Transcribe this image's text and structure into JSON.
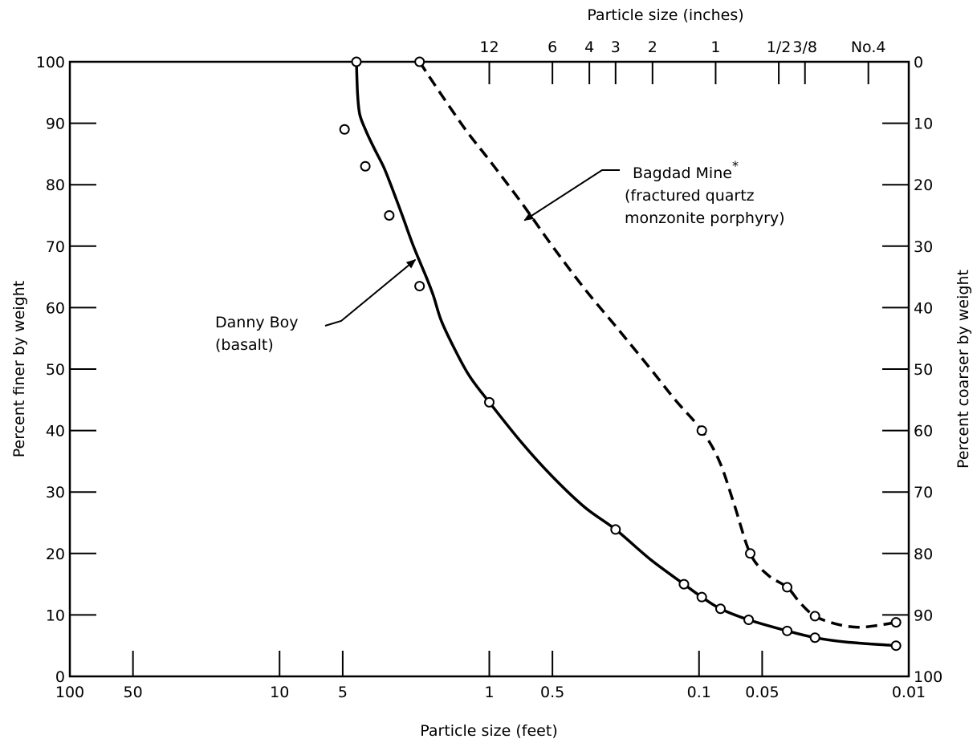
{
  "chart_data": {
    "type": "line",
    "title": "",
    "xlabel": "Particle size (feet)",
    "ylabel": "Percent finer by weight",
    "y2label": "Percent coarser by weight",
    "x2label": "Particle size (inches)",
    "x_scale": "log",
    "x_reversed": true,
    "xlim": [
      100,
      0.01
    ],
    "ylim": [
      0,
      100
    ],
    "grid": false,
    "legend": "none",
    "x_ticks": [
      {
        "value": 100,
        "label": "100"
      },
      {
        "value": 50,
        "label": "50"
      },
      {
        "value": 10,
        "label": "10"
      },
      {
        "value": 5,
        "label": "5"
      },
      {
        "value": 1,
        "label": "1"
      },
      {
        "value": 0.5,
        "label": "0.5"
      },
      {
        "value": 0.1,
        "label": "0.1"
      },
      {
        "value": 0.05,
        "label": "0.05"
      },
      {
        "value": 0.01,
        "label": "0.01"
      }
    ],
    "x2_ticks": [
      {
        "value": 12,
        "label": "12"
      },
      {
        "value": 6,
        "label": "6"
      },
      {
        "value": 4,
        "label": "4"
      },
      {
        "value": 3,
        "label": "3"
      },
      {
        "value": 2,
        "label": "2"
      },
      {
        "value": 1,
        "label": "1"
      },
      {
        "value": 0.5,
        "label": "1/2"
      },
      {
        "value": 0.375,
        "label": "3/8"
      },
      {
        "value": 0.187,
        "label": "No.4"
      }
    ],
    "y_ticks": [
      "0",
      "10",
      "20",
      "30",
      "40",
      "50",
      "60",
      "70",
      "80",
      "90",
      "100"
    ],
    "y2_ticks": [
      "100",
      "90",
      "80",
      "70",
      "60",
      "50",
      "40",
      "30",
      "20",
      "10",
      "0"
    ],
    "series": [
      {
        "style": "solid",
        "points": [
          {
            "x": 4.3,
            "y": 100
          },
          {
            "x": 4.9,
            "y": 89
          },
          {
            "x": 3.9,
            "y": 83
          },
          {
            "x": 3.0,
            "y": 75
          },
          {
            "x": 2.15,
            "y": 63.5
          },
          {
            "x": 1.0,
            "y": 44.6
          },
          {
            "x": 0.25,
            "y": 23.9
          },
          {
            "x": 0.118,
            "y": 15
          },
          {
            "x": 0.097,
            "y": 12.9
          },
          {
            "x": 0.079,
            "y": 11
          },
          {
            "x": 0.058,
            "y": 9.2
          },
          {
            "x": 0.038,
            "y": 7.4
          },
          {
            "x": 0.028,
            "y": 6.3
          },
          {
            "x": 0.0115,
            "y": 5
          }
        ],
        "curve": [
          {
            "x": 4.3,
            "y": 100
          },
          {
            "x": 4.25,
            "y": 95
          },
          {
            "x": 4.15,
            "y": 91.5
          },
          {
            "x": 3.9,
            "y": 89
          },
          {
            "x": 3.55,
            "y": 86
          },
          {
            "x": 3.2,
            "y": 83
          },
          {
            "x": 2.95,
            "y": 80
          },
          {
            "x": 2.6,
            "y": 75
          },
          {
            "x": 2.3,
            "y": 70
          },
          {
            "x": 2.0,
            "y": 65
          },
          {
            "x": 1.85,
            "y": 62
          },
          {
            "x": 1.7,
            "y": 58
          },
          {
            "x": 1.5,
            "y": 54
          },
          {
            "x": 1.25,
            "y": 49
          },
          {
            "x": 1.0,
            "y": 44.6
          },
          {
            "x": 0.7,
            "y": 38
          },
          {
            "x": 0.5,
            "y": 32.5
          },
          {
            "x": 0.35,
            "y": 27.5
          },
          {
            "x": 0.25,
            "y": 23.9
          },
          {
            "x": 0.17,
            "y": 19
          },
          {
            "x": 0.118,
            "y": 15
          },
          {
            "x": 0.097,
            "y": 12.9
          },
          {
            "x": 0.079,
            "y": 11
          },
          {
            "x": 0.058,
            "y": 9.2
          },
          {
            "x": 0.038,
            "y": 7.4
          },
          {
            "x": 0.028,
            "y": 6.3
          },
          {
            "x": 0.02,
            "y": 5.6
          },
          {
            "x": 0.0115,
            "y": 5
          }
        ]
      },
      {
        "style": "dashed",
        "points": [
          {
            "x": 2.15,
            "y": 100
          },
          {
            "x": 0.097,
            "y": 40
          },
          {
            "x": 0.057,
            "y": 20
          },
          {
            "x": 0.038,
            "y": 14.5
          },
          {
            "x": 0.028,
            "y": 9.8
          },
          {
            "x": 0.0115,
            "y": 8.8
          }
        ],
        "curve": [
          {
            "x": 2.15,
            "y": 100
          },
          {
            "x": 1.8,
            "y": 96
          },
          {
            "x": 1.3,
            "y": 89
          },
          {
            "x": 1.0,
            "y": 84
          },
          {
            "x": 0.7,
            "y": 77
          },
          {
            "x": 0.5,
            "y": 70
          },
          {
            "x": 0.35,
            "y": 63
          },
          {
            "x": 0.25,
            "y": 57
          },
          {
            "x": 0.17,
            "y": 50
          },
          {
            "x": 0.13,
            "y": 45
          },
          {
            "x": 0.097,
            "y": 40
          },
          {
            "x": 0.08,
            "y": 35
          },
          {
            "x": 0.068,
            "y": 28
          },
          {
            "x": 0.057,
            "y": 20
          },
          {
            "x": 0.047,
            "y": 16.5
          },
          {
            "x": 0.038,
            "y": 14.5
          },
          {
            "x": 0.033,
            "y": 12
          },
          {
            "x": 0.028,
            "y": 9.8
          },
          {
            "x": 0.022,
            "y": 8.5
          },
          {
            "x": 0.0175,
            "y": 8
          },
          {
            "x": 0.014,
            "y": 8.3
          },
          {
            "x": 0.0115,
            "y": 8.8
          }
        ]
      }
    ],
    "annotations": [
      {
        "lines": [
          "Danny Boy",
          "(basalt)"
        ],
        "arrow_to": {
          "x": 2.25,
          "y": 67.8
        }
      },
      {
        "lines": [
          "Bagdad Mine",
          "(fractured quartz",
          "monzonite porphyry)"
        ],
        "superscript": "*",
        "arrow_to": {
          "x": 0.68,
          "y": 74.2
        }
      }
    ]
  }
}
